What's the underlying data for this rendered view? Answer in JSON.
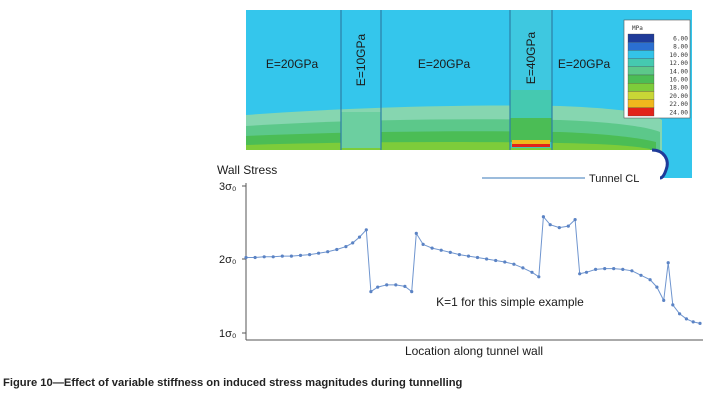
{
  "contour": {
    "zones": [
      {
        "label": "E=20GPa",
        "vertical": false
      },
      {
        "label": "E=10GPa",
        "vertical": true
      },
      {
        "label": "E=20GPa",
        "vertical": false
      },
      {
        "label": "E=40GPa",
        "vertical": true
      },
      {
        "label": "E=20GPa",
        "vertical": false
      }
    ],
    "legend": {
      "unit": "MPa",
      "levels": [
        "6.00",
        "8.00",
        "10.00",
        "12.00",
        "14.00",
        "16.00",
        "18.00",
        "20.00",
        "22.00",
        "24.00"
      ],
      "colors": [
        "#1f3b99",
        "#2b6fd1",
        "#33c3e8",
        "#45c9b0",
        "#5cc88a",
        "#4bbd55",
        "#7dcc3a",
        "#c8d636",
        "#f0b81d",
        "#e2231a"
      ]
    },
    "tunnel_label": "Tunnel CL"
  },
  "chart_data": {
    "type": "line",
    "ylabel": "Wall Stress",
    "xlabel": "Location along tunnel wall",
    "yticks": [
      {
        "value": 3,
        "label": "3σ₀"
      },
      {
        "value": 2,
        "label": "2σ₀"
      },
      {
        "value": 1,
        "label": "1σ₀"
      }
    ],
    "ylim": [
      1,
      3
    ],
    "xlim": [
      0,
      100
    ],
    "annotation": "K=1 for this simple example",
    "grid": false,
    "marker_color": "#5b83c4",
    "series": [
      {
        "values": [
          [
            0,
            2.02
          ],
          [
            2,
            2.02
          ],
          [
            4,
            2.03
          ],
          [
            6,
            2.03
          ],
          [
            8,
            2.04
          ],
          [
            10,
            2.04
          ],
          [
            12,
            2.05
          ],
          [
            14,
            2.06
          ],
          [
            16,
            2.08
          ],
          [
            18,
            2.1
          ],
          [
            20,
            2.13
          ],
          [
            22,
            2.17
          ],
          [
            23.5,
            2.22
          ],
          [
            25,
            2.3
          ],
          [
            26.5,
            2.4
          ],
          [
            27.5,
            1.56
          ],
          [
            29,
            1.62
          ],
          [
            31,
            1.65
          ],
          [
            33,
            1.65
          ],
          [
            35,
            1.63
          ],
          [
            36.5,
            1.56
          ],
          [
            37.5,
            2.35
          ],
          [
            39,
            2.2
          ],
          [
            41,
            2.15
          ],
          [
            43,
            2.12
          ],
          [
            45,
            2.09
          ],
          [
            47,
            2.06
          ],
          [
            49,
            2.04
          ],
          [
            51,
            2.02
          ],
          [
            53,
            2.0
          ],
          [
            55,
            1.98
          ],
          [
            57,
            1.96
          ],
          [
            59,
            1.93
          ],
          [
            61,
            1.88
          ],
          [
            63,
            1.82
          ],
          [
            64.5,
            1.76
          ],
          [
            65.5,
            2.58
          ],
          [
            67,
            2.47
          ],
          [
            69,
            2.43
          ],
          [
            71,
            2.45
          ],
          [
            72.5,
            2.54
          ],
          [
            73.5,
            1.8
          ],
          [
            75,
            1.82
          ],
          [
            77,
            1.86
          ],
          [
            79,
            1.87
          ],
          [
            81,
            1.87
          ],
          [
            83,
            1.86
          ],
          [
            85,
            1.84
          ],
          [
            87,
            1.78
          ],
          [
            89,
            1.72
          ],
          [
            90.5,
            1.62
          ],
          [
            92,
            1.44
          ],
          [
            93,
            1.95
          ],
          [
            94,
            1.38
          ],
          [
            95.5,
            1.26
          ],
          [
            97,
            1.19
          ],
          [
            98.5,
            1.15
          ],
          [
            100,
            1.13
          ]
        ]
      }
    ]
  },
  "caption": "Figure 10—Effect of variable stiffness on induced stress magnitudes during tunnelling"
}
